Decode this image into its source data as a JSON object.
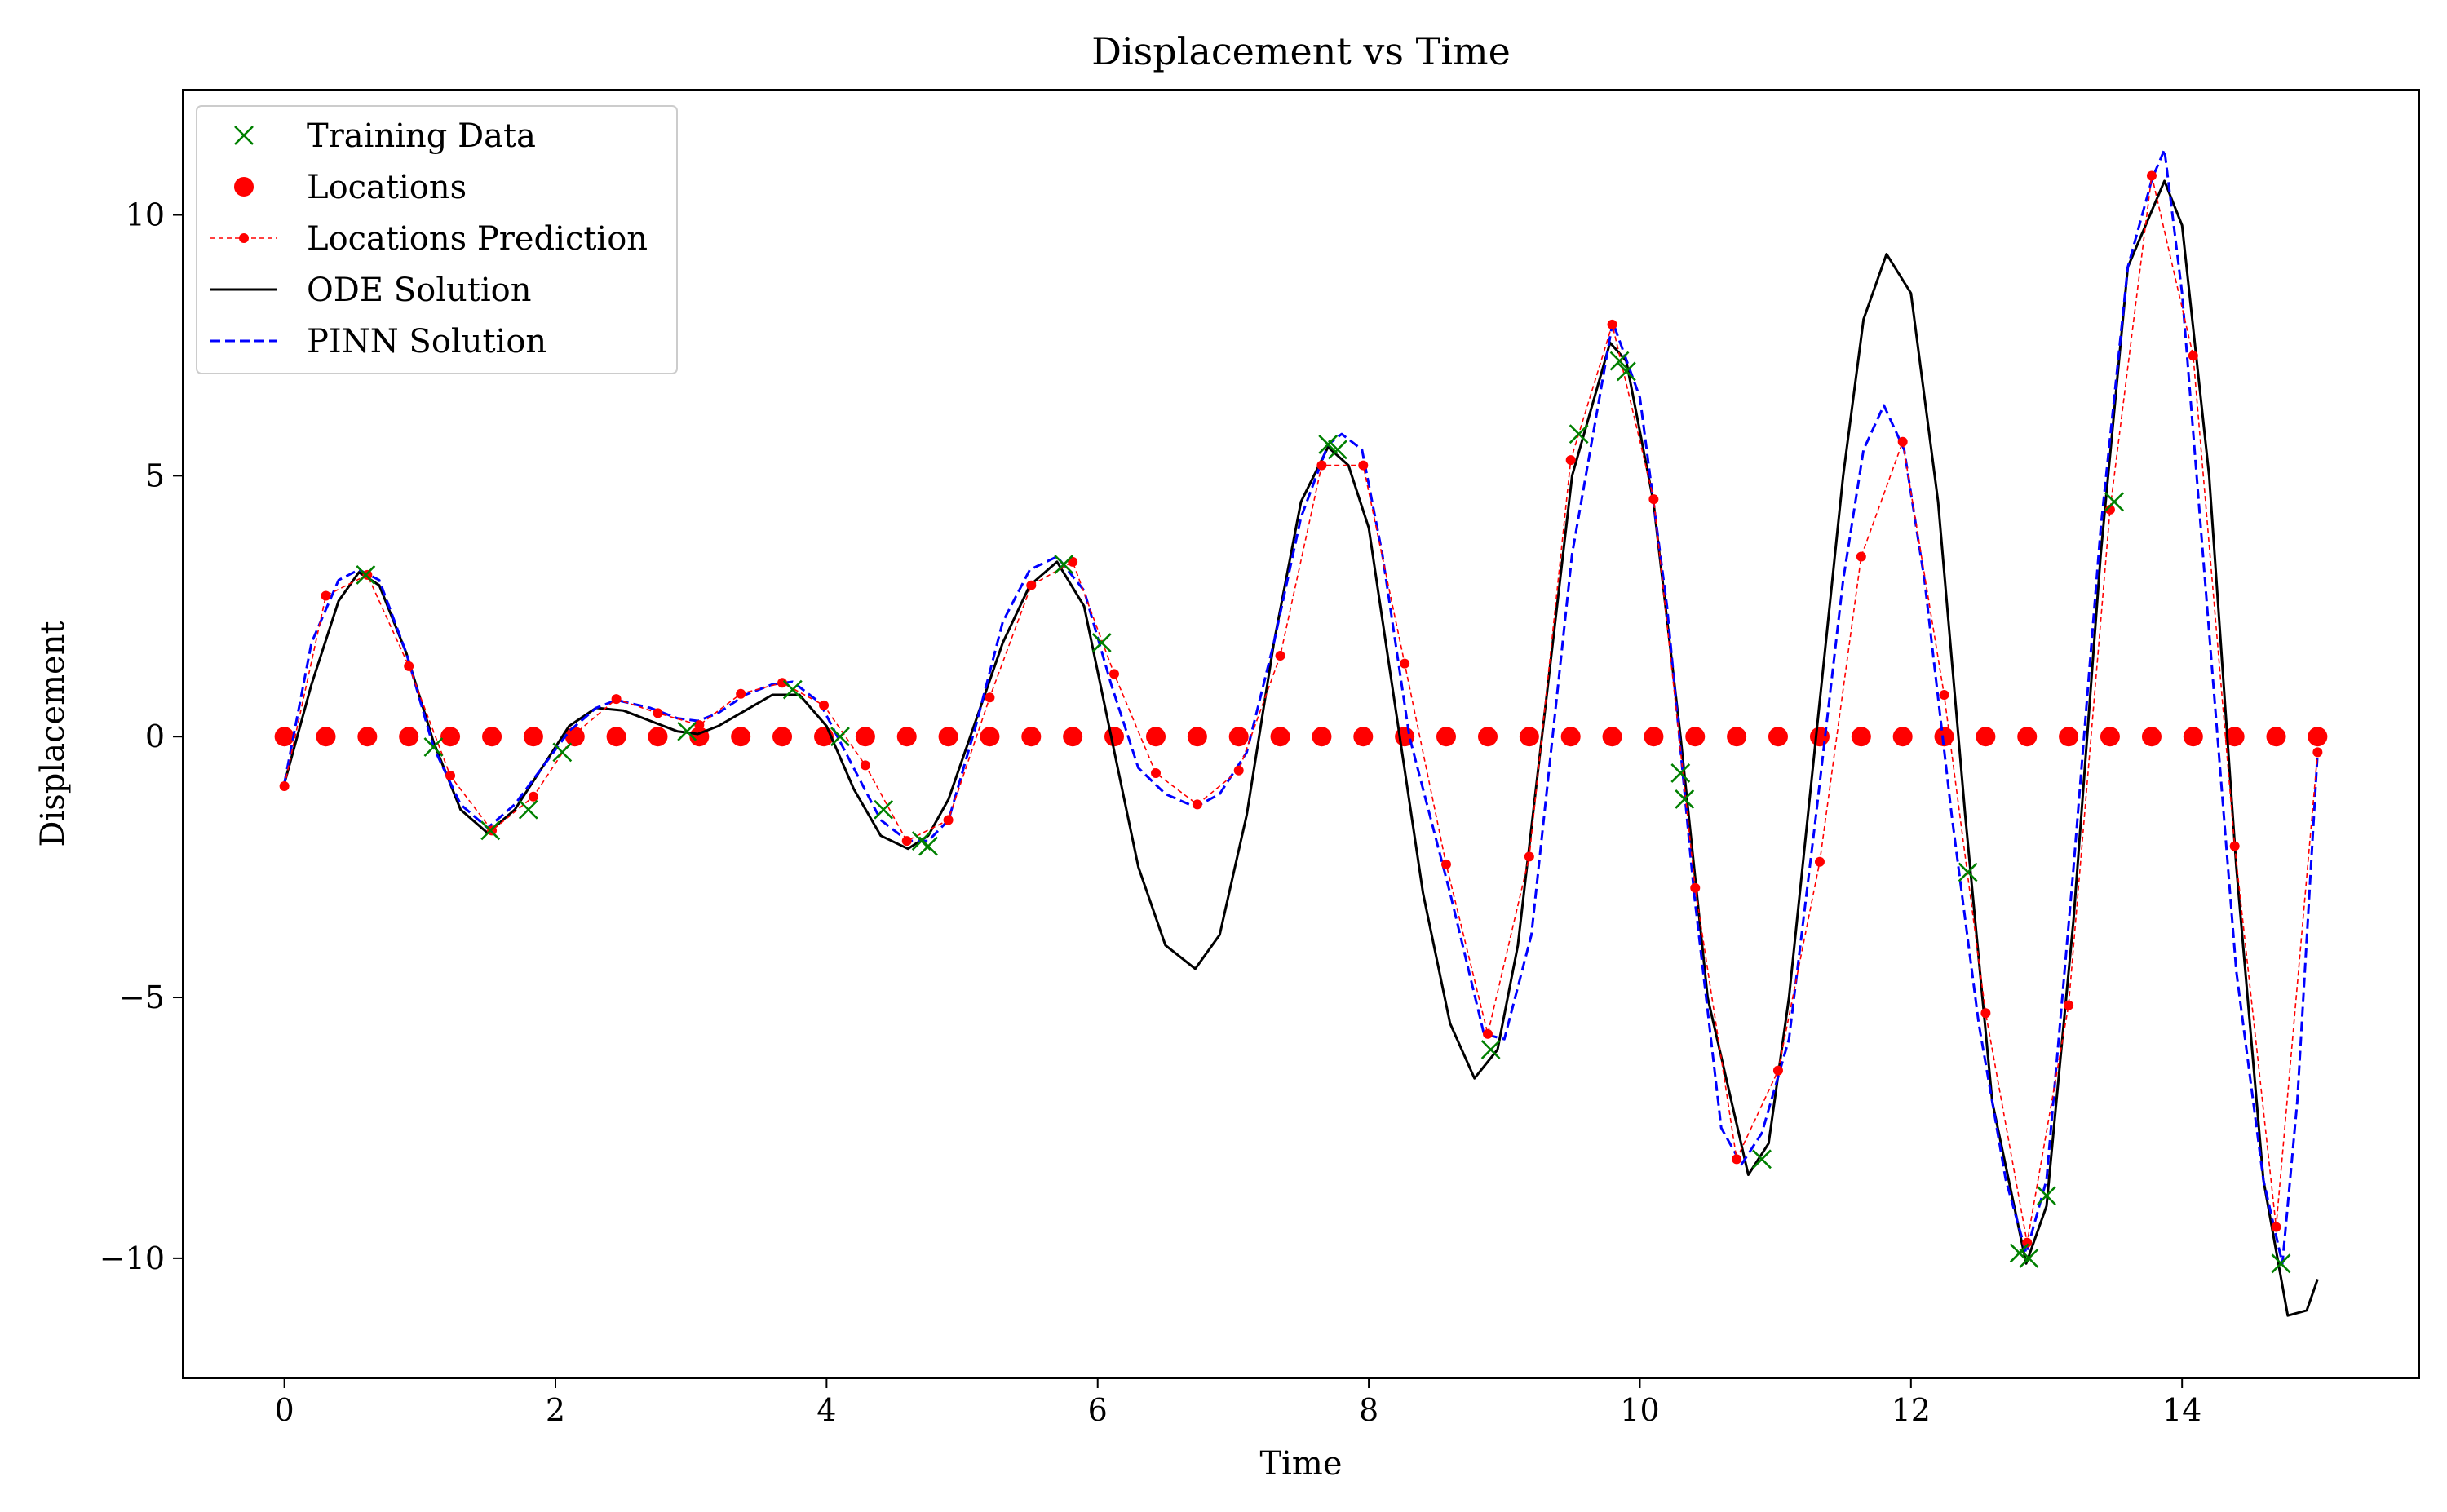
{
  "chart_data": {
    "type": "line",
    "title": "Displacement vs Time",
    "xlabel": "Time",
    "ylabel": "Displacement",
    "xlim": [
      -0.75,
      15.75
    ],
    "ylim": [
      -12.3,
      12.4
    ],
    "xticks": [
      0,
      2,
      4,
      6,
      8,
      10,
      12,
      14
    ],
    "xtick_labels": [
      "0",
      "2",
      "4",
      "6",
      "8",
      "10",
      "12",
      "14"
    ],
    "yticks": [
      -10,
      -5,
      0,
      5,
      10
    ],
    "ytick_labels": [
      "−10",
      "−5",
      "0",
      "5",
      "10"
    ],
    "grid": false,
    "legend_position": "upper-left",
    "legend": [
      {
        "key": "training",
        "label": "Training Data"
      },
      {
        "key": "locations",
        "label": "Locations"
      },
      {
        "key": "locpred",
        "label": "Locations Prediction"
      },
      {
        "key": "ode",
        "label": "ODE Solution"
      },
      {
        "key": "pinn",
        "label": "PINN Solution"
      }
    ],
    "colors": {
      "training": "#008000",
      "locations": "#ff0000",
      "locpred": "#ff0000",
      "ode": "#000000",
      "pinn": "#0000ff"
    },
    "series": [
      {
        "name": "Training Data",
        "key": "training",
        "type": "scatter",
        "marker": "x",
        "x": [
          0.6,
          1.1,
          1.52,
          1.8,
          2.05,
          2.97,
          3.75,
          4.1,
          4.42,
          4.7,
          4.75,
          5.75,
          6.03,
          7.7,
          7.77,
          8.9,
          9.55,
          9.85,
          9.9,
          10.3,
          10.33,
          10.9,
          12.42,
          12.8,
          12.87,
          13.0,
          13.5,
          14.73
        ],
        "y": [
          3.1,
          -0.2,
          -1.8,
          -1.4,
          -0.3,
          0.1,
          0.9,
          0.0,
          -1.4,
          -2.0,
          -2.1,
          3.3,
          1.8,
          5.6,
          5.5,
          -6.0,
          5.8,
          7.2,
          7.0,
          -0.7,
          -1.2,
          -8.1,
          -2.6,
          -9.9,
          -10.0,
          -8.8,
          4.5,
          -10.1
        ]
      },
      {
        "name": "Locations",
        "key": "locations",
        "type": "scatter",
        "marker": "o",
        "x": [
          0,
          0.306,
          0.612,
          0.918,
          1.224,
          1.531,
          1.837,
          2.143,
          2.449,
          2.755,
          3.061,
          3.367,
          3.673,
          3.98,
          4.286,
          4.592,
          4.898,
          5.204,
          5.51,
          5.816,
          6.122,
          6.429,
          6.735,
          7.041,
          7.347,
          7.653,
          7.959,
          8.265,
          8.571,
          8.878,
          9.184,
          9.49,
          9.796,
          10.102,
          10.408,
          10.714,
          11.02,
          11.327,
          11.633,
          11.939,
          12.245,
          12.551,
          12.857,
          13.163,
          13.469,
          13.776,
          14.082,
          14.388,
          14.694,
          15.0
        ],
        "y": [
          0,
          0,
          0,
          0,
          0,
          0,
          0,
          0,
          0,
          0,
          0,
          0,
          0,
          0,
          0,
          0,
          0,
          0,
          0,
          0,
          0,
          0,
          0,
          0,
          0,
          0,
          0,
          0,
          0,
          0,
          0,
          0,
          0,
          0,
          0,
          0,
          0,
          0,
          0,
          0,
          0,
          0,
          0,
          0,
          0,
          0,
          0,
          0,
          0,
          0
        ]
      },
      {
        "name": "Locations Prediction",
        "key": "locpred",
        "type": "line",
        "marker": "o",
        "x": [
          0,
          0.306,
          0.612,
          0.918,
          1.224,
          1.531,
          1.837,
          2.143,
          2.449,
          2.755,
          3.061,
          3.367,
          3.673,
          3.98,
          4.286,
          4.592,
          4.898,
          5.204,
          5.51,
          5.816,
          6.122,
          6.429,
          6.735,
          7.041,
          7.347,
          7.653,
          7.959,
          8.265,
          8.571,
          8.878,
          9.184,
          9.49,
          9.796,
          10.102,
          10.408,
          10.714,
          11.02,
          11.327,
          11.633,
          11.939,
          12.245,
          12.551,
          12.857,
          13.163,
          13.469,
          13.776,
          14.082,
          14.388,
          14.694,
          15.0
        ],
        "y": [
          -0.95,
          2.7,
          3.1,
          1.35,
          -0.75,
          -1.8,
          -1.15,
          0.05,
          0.72,
          0.45,
          0.22,
          0.82,
          1.03,
          0.6,
          -0.55,
          -2.0,
          -1.6,
          0.75,
          2.9,
          3.35,
          1.2,
          -0.7,
          -1.3,
          -0.65,
          1.55,
          5.2,
          5.2,
          1.4,
          -2.45,
          -5.7,
          -2.3,
          5.3,
          7.9,
          4.55,
          -2.9,
          -8.1,
          -6.4,
          -2.4,
          3.45,
          5.65,
          0.8,
          -5.3,
          -9.7,
          -5.15,
          4.35,
          10.75,
          7.3,
          -2.1,
          -9.4,
          -0.3
        ]
      },
      {
        "name": "ODE Solution",
        "key": "ode",
        "type": "line",
        "x": [
          0,
          0.2,
          0.4,
          0.55,
          0.7,
          0.9,
          1.1,
          1.3,
          1.5,
          1.7,
          1.9,
          2.1,
          2.3,
          2.5,
          2.7,
          2.9,
          3.05,
          3.2,
          3.4,
          3.6,
          3.8,
          4.0,
          4.2,
          4.4,
          4.6,
          4.75,
          4.9,
          5.1,
          5.3,
          5.5,
          5.7,
          5.9,
          6.1,
          6.3,
          6.5,
          6.72,
          6.9,
          7.1,
          7.3,
          7.5,
          7.7,
          7.85,
          8.0,
          8.2,
          8.4,
          8.6,
          8.78,
          8.95,
          9.1,
          9.3,
          9.5,
          9.78,
          9.9,
          10.1,
          10.3,
          10.5,
          10.8,
          10.95,
          11.1,
          11.3,
          11.5,
          11.65,
          11.82,
          12.0,
          12.2,
          12.4,
          12.6,
          12.85,
          13.0,
          13.2,
          13.4,
          13.6,
          13.87,
          14.0,
          14.2,
          14.4,
          14.6,
          14.78,
          14.92,
          15.0
        ],
        "y": [
          -0.9,
          1.0,
          2.6,
          3.15,
          2.9,
          1.6,
          -0.1,
          -1.4,
          -1.85,
          -1.4,
          -0.6,
          0.2,
          0.55,
          0.5,
          0.3,
          0.1,
          0.05,
          0.2,
          0.5,
          0.8,
          0.8,
          0.2,
          -1.0,
          -1.9,
          -2.15,
          -1.9,
          -1.2,
          0.3,
          1.8,
          2.9,
          3.35,
          2.5,
          0.0,
          -2.5,
          -4.0,
          -4.45,
          -3.8,
          -1.5,
          1.8,
          4.5,
          5.55,
          5.2,
          4.0,
          0.5,
          -3.0,
          -5.5,
          -6.55,
          -6.0,
          -4.0,
          0.5,
          5.0,
          7.55,
          7.2,
          4.5,
          0.0,
          -5.0,
          -8.4,
          -7.8,
          -5.0,
          0.0,
          5.0,
          8.0,
          9.25,
          8.5,
          4.5,
          -1.5,
          -7.0,
          -10.1,
          -9.0,
          -3.5,
          3.5,
          9.0,
          10.65,
          9.8,
          5.0,
          -2.5,
          -8.5,
          -11.1,
          -11.0,
          -10.4
        ]
      },
      {
        "name": "PINN Solution",
        "key": "pinn",
        "type": "line",
        "x": [
          0,
          0.2,
          0.4,
          0.55,
          0.7,
          0.9,
          1.1,
          1.3,
          1.5,
          1.7,
          1.9,
          2.1,
          2.3,
          2.45,
          2.7,
          2.9,
          3.05,
          3.2,
          3.4,
          3.6,
          3.75,
          3.95,
          4.2,
          4.4,
          4.6,
          4.75,
          4.9,
          5.1,
          5.3,
          5.5,
          5.7,
          5.9,
          6.1,
          6.3,
          6.5,
          6.72,
          6.9,
          7.1,
          7.3,
          7.5,
          7.7,
          7.8,
          7.95,
          8.1,
          8.3,
          8.6,
          8.85,
          9.0,
          9.2,
          9.5,
          9.8,
          10.0,
          10.2,
          10.4,
          10.6,
          10.75,
          10.9,
          11.1,
          11.3,
          11.5,
          11.65,
          11.8,
          11.95,
          12.1,
          12.3,
          12.5,
          12.7,
          12.85,
          13.0,
          13.2,
          13.4,
          13.6,
          13.78,
          13.87,
          14.0,
          14.2,
          14.4,
          14.6,
          14.74,
          14.85,
          15.0
        ],
        "y": [
          -0.9,
          1.8,
          3.0,
          3.2,
          3.0,
          1.6,
          -0.2,
          -1.3,
          -1.75,
          -1.3,
          -0.6,
          0.1,
          0.55,
          0.7,
          0.55,
          0.35,
          0.3,
          0.45,
          0.8,
          1.0,
          1.05,
          0.65,
          -0.6,
          -1.6,
          -2.0,
          -2.0,
          -1.6,
          0.2,
          2.2,
          3.2,
          3.45,
          2.8,
          1.0,
          -0.6,
          -1.1,
          -1.35,
          -1.1,
          -0.3,
          1.8,
          4.2,
          5.6,
          5.8,
          5.5,
          3.5,
          0.0,
          -3.0,
          -5.7,
          -5.8,
          -3.8,
          3.5,
          7.95,
          6.5,
          2.5,
          -3.0,
          -7.5,
          -8.2,
          -7.6,
          -5.8,
          -1.5,
          3.0,
          5.5,
          6.35,
          5.5,
          3.0,
          -1.5,
          -5.5,
          -8.5,
          -9.9,
          -8.5,
          -2.5,
          4.0,
          9.0,
          10.7,
          11.25,
          8.5,
          2.0,
          -4.5,
          -8.5,
          -10.1,
          -7.0,
          -0.3
        ]
      }
    ]
  }
}
